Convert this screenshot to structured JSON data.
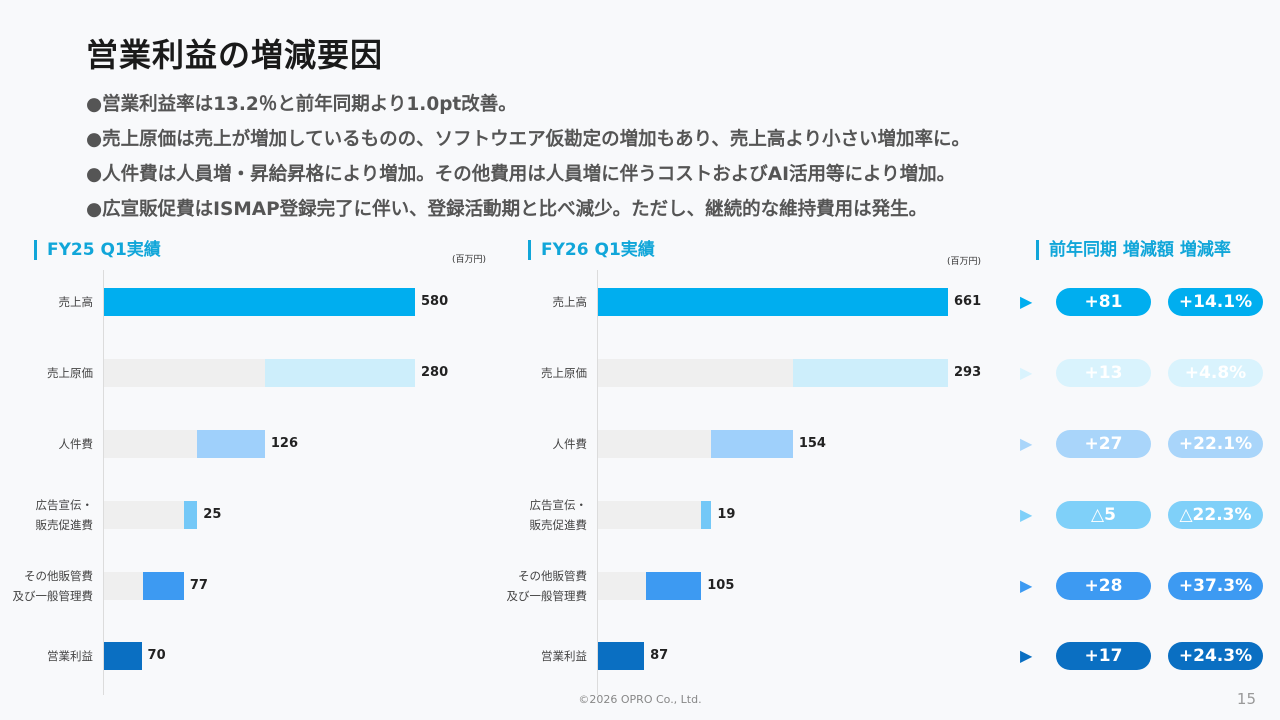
{
  "title": "営業利益の増減要因",
  "bullets": [
    "●営業利益率は13.2％と前年同期より1.0pt改善。",
    "●売上原価は売上が増加しているものの、ソフトウエア仮勘定の増加もあり、売上高より小さい増加率に。",
    "●人件費は人員増・昇給昇格により増加。その他費用は人員増に伴うコストおよびAI活用等により増加。",
    "●広宣販促費はISMAP登録完了に伴い、登録活動期と比べ減少。ただし、継続的な維持費用は発生。"
  ],
  "sections": {
    "fy25": "FY25 Q1実績",
    "fy26": "FY26 Q1実績",
    "change": "前年同期 増減額 増減率"
  },
  "unit_label": "(百万円)",
  "footer": "©2026 OPRO Co., Ltd.",
  "page_number": "15",
  "chart_data": {
    "type": "bar",
    "subtype": "waterfall-horizontal",
    "categories": [
      [
        "売上高"
      ],
      [
        "売上原価"
      ],
      [
        "人件費"
      ],
      [
        "広告宣伝・",
        "販売促進費"
      ],
      [
        "その他販管費",
        "及び一般管理費"
      ],
      [
        "営業利益"
      ]
    ],
    "fy25": {
      "values": [
        580,
        280,
        126,
        25,
        77,
        70
      ],
      "labels": [
        "580",
        "280",
        "126",
        "25",
        "77",
        "70"
      ]
    },
    "fy26": {
      "values": [
        661,
        293,
        154,
        19,
        105,
        87
      ],
      "labels": [
        "661",
        "293",
        "154",
        "19",
        "105",
        "87"
      ]
    },
    "change_amount": [
      "+81",
      "+13",
      "+27",
      "△5",
      "+28",
      "+17"
    ],
    "change_rate": [
      "+14.1%",
      "+4.8%",
      "+22.1%",
      "△22.3%",
      "+37.3%",
      "+24.3%"
    ],
    "colors": [
      "#00aeef",
      "#cdeefb",
      "#9fd0fb",
      "#74c8f7",
      "#3d9af2",
      "#0a6fc2"
    ],
    "pill_colors": [
      "#00aeef",
      "#d9f3fd",
      "#a9d5fa",
      "#7fd0f9",
      "#3d9af2",
      "#0a6fc2"
    ],
    "arrow_colors": [
      "#00aeef",
      "#d9f3fd",
      "#a9d5fa",
      "#7fd0f9",
      "#3d9af2",
      "#0a6fc2"
    ],
    "baseline_color": "#efefef"
  }
}
